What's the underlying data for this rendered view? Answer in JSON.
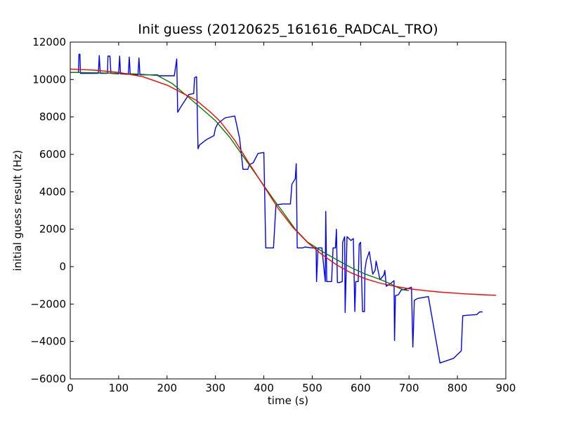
{
  "chart_data": {
    "type": "line",
    "title": "Init guess (20120625_161616_RADCAL_TRO)",
    "xlabel": "time (s)",
    "ylabel": "initial guess result (Hz)",
    "xlim": [
      0,
      900
    ],
    "ylim": [
      -6000,
      12000
    ],
    "xticks": [
      0,
      100,
      200,
      300,
      400,
      500,
      600,
      700,
      800,
      900
    ],
    "yticks": [
      -6000,
      -4000,
      -2000,
      0,
      2000,
      4000,
      6000,
      8000,
      10000,
      12000
    ],
    "grid": false,
    "legend": "none",
    "series": [
      {
        "color": "#0000ff",
        "points": [
          [
            0,
            10380
          ],
          [
            17,
            10380
          ],
          [
            18,
            11350
          ],
          [
            20,
            11350
          ],
          [
            21,
            10330
          ],
          [
            58,
            10330
          ],
          [
            60,
            11280
          ],
          [
            62,
            10330
          ],
          [
            77,
            10330
          ],
          [
            78,
            11250
          ],
          [
            82,
            11250
          ],
          [
            84,
            10330
          ],
          [
            100,
            10300
          ],
          [
            102,
            11250
          ],
          [
            104,
            10300
          ],
          [
            120,
            10280
          ],
          [
            122,
            11200
          ],
          [
            124,
            10280
          ],
          [
            140,
            10250
          ],
          [
            142,
            11150
          ],
          [
            144,
            10250
          ],
          [
            180,
            10250
          ],
          [
            183,
            10200
          ],
          [
            215,
            10200
          ],
          [
            220,
            11100
          ],
          [
            222,
            8250
          ],
          [
            230,
            8600
          ],
          [
            245,
            9200
          ],
          [
            255,
            9250
          ],
          [
            257,
            10100
          ],
          [
            261,
            10150
          ],
          [
            264,
            6300
          ],
          [
            267,
            6500
          ],
          [
            282,
            6800
          ],
          [
            297,
            7000
          ],
          [
            300,
            7400
          ],
          [
            305,
            7650
          ],
          [
            320,
            7950
          ],
          [
            340,
            8050
          ],
          [
            350,
            6850
          ],
          [
            357,
            5200
          ],
          [
            367,
            5200
          ],
          [
            370,
            5450
          ],
          [
            378,
            5550
          ],
          [
            388,
            6050
          ],
          [
            400,
            6100
          ],
          [
            404,
            1000
          ],
          [
            420,
            1000
          ],
          [
            425,
            3300
          ],
          [
            440,
            3350
          ],
          [
            455,
            3350
          ],
          [
            458,
            4400
          ],
          [
            465,
            4700
          ],
          [
            467,
            5500
          ],
          [
            469,
            1000
          ],
          [
            480,
            1000
          ],
          [
            485,
            1050
          ],
          [
            500,
            1000
          ],
          [
            508,
            1000
          ],
          [
            509,
            -800
          ],
          [
            512,
            1000
          ],
          [
            520,
            1000
          ],
          [
            527,
            -800
          ],
          [
            528,
            2950
          ],
          [
            530,
            -800
          ],
          [
            540,
            -800
          ],
          [
            543,
            1000
          ],
          [
            548,
            1000
          ],
          [
            550,
            2000
          ],
          [
            552,
            -850
          ],
          [
            556,
            -850
          ],
          [
            562,
            -800
          ],
          [
            563,
            1300
          ],
          [
            567,
            1600
          ],
          [
            568,
            -2450
          ],
          [
            572,
            1600
          ],
          [
            580,
            1400
          ],
          [
            585,
            1500
          ],
          [
            588,
            -2400
          ],
          [
            590,
            -800
          ],
          [
            595,
            -800
          ],
          [
            597,
            1200
          ],
          [
            600,
            1300
          ],
          [
            604,
            -2400
          ],
          [
            608,
            -2400
          ],
          [
            609,
            -150
          ],
          [
            612,
            350
          ],
          [
            618,
            800
          ],
          [
            625,
            -400
          ],
          [
            630,
            -200
          ],
          [
            632,
            300
          ],
          [
            640,
            -700
          ],
          [
            648,
            -450
          ],
          [
            650,
            -200
          ],
          [
            653,
            -1050
          ],
          [
            662,
            -900
          ],
          [
            669,
            -750
          ],
          [
            670,
            -3950
          ],
          [
            672,
            -1550
          ],
          [
            678,
            -1500
          ],
          [
            684,
            -1250
          ],
          [
            695,
            -1200
          ],
          [
            705,
            -1100
          ],
          [
            708,
            -4300
          ],
          [
            711,
            -1800
          ],
          [
            718,
            -1700
          ],
          [
            740,
            -1600
          ],
          [
            764,
            -5150
          ],
          [
            792,
            -4900
          ],
          [
            808,
            -4500
          ],
          [
            811,
            -2620
          ],
          [
            820,
            -2600
          ],
          [
            840,
            -2560
          ],
          [
            846,
            -2420
          ],
          [
            852,
            -2420
          ]
        ]
      },
      {
        "color": "#007f00",
        "points": [
          [
            0,
            10380
          ],
          [
            50,
            10360
          ],
          [
            100,
            10330
          ],
          [
            140,
            10290
          ],
          [
            180,
            10220
          ],
          [
            210,
            9800
          ],
          [
            240,
            9150
          ],
          [
            270,
            8480
          ],
          [
            300,
            7800
          ],
          [
            330,
            6900
          ],
          [
            360,
            5800
          ],
          [
            390,
            4700
          ],
          [
            420,
            3600
          ],
          [
            440,
            2900
          ],
          [
            465,
            2000
          ],
          [
            490,
            1320
          ],
          [
            520,
            820
          ],
          [
            550,
            380
          ],
          [
            580,
            -50
          ],
          [
            610,
            -400
          ],
          [
            640,
            -680
          ],
          [
            660,
            -900
          ],
          [
            680,
            -1150
          ],
          [
            690,
            -1250
          ],
          [
            700,
            -1280
          ]
        ]
      },
      {
        "color": "#ff0000",
        "points": [
          [
            0,
            10560
          ],
          [
            50,
            10500
          ],
          [
            100,
            10380
          ],
          [
            150,
            10150
          ],
          [
            200,
            9700
          ],
          [
            230,
            9300
          ],
          [
            260,
            8900
          ],
          [
            290,
            8250
          ],
          [
            310,
            7750
          ],
          [
            340,
            6750
          ],
          [
            370,
            5500
          ],
          [
            400,
            4300
          ],
          [
            430,
            3100
          ],
          [
            460,
            2100
          ],
          [
            490,
            1300
          ],
          [
            520,
            650
          ],
          [
            550,
            100
          ],
          [
            580,
            -330
          ],
          [
            610,
            -650
          ],
          [
            640,
            -880
          ],
          [
            670,
            -1050
          ],
          [
            700,
            -1180
          ],
          [
            730,
            -1270
          ],
          [
            760,
            -1350
          ],
          [
            790,
            -1410
          ],
          [
            820,
            -1460
          ],
          [
            850,
            -1500
          ],
          [
            880,
            -1530
          ]
        ]
      }
    ]
  }
}
